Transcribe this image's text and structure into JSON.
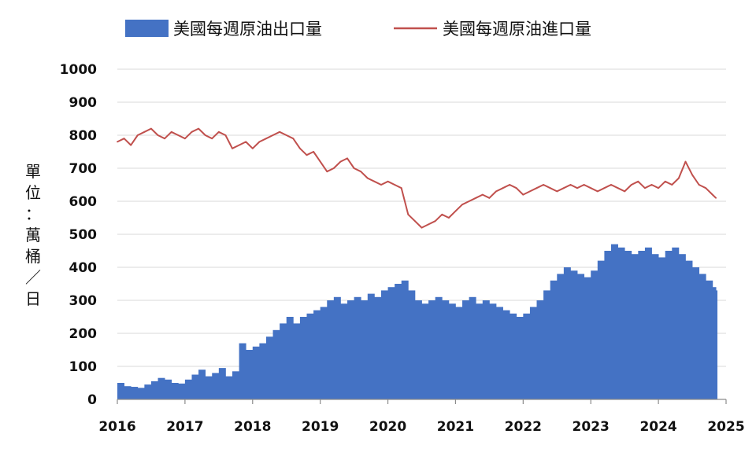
{
  "chart_data": {
    "type": "line",
    "title": "",
    "xlabel": "",
    "ylabel": "單位：萬桶／日",
    "ylabel_chars": [
      "單",
      "位",
      "：",
      "萬",
      "桶",
      "／",
      "日"
    ],
    "xlim": [
      2016,
      2025
    ],
    "ylim": [
      0,
      1000
    ],
    "xticks": [
      "2016",
      "2017",
      "2018",
      "2019",
      "2020",
      "2021",
      "2022",
      "2023",
      "2024",
      "2025"
    ],
    "yticks": [
      "0",
      "100",
      "200",
      "300",
      "400",
      "500",
      "600",
      "700",
      "800",
      "900",
      "1000"
    ],
    "grid": "horizontal",
    "legend_position": "top",
    "series": [
      {
        "name": "美國每週原油出口量",
        "type": "area",
        "color": "#4472c4",
        "x": [
          2016.0,
          2016.1,
          2016.2,
          2016.3,
          2016.4,
          2016.5,
          2016.6,
          2016.7,
          2016.8,
          2016.9,
          2017.0,
          2017.1,
          2017.2,
          2017.3,
          2017.4,
          2017.5,
          2017.6,
          2017.7,
          2017.8,
          2017.9,
          2018.0,
          2018.1,
          2018.2,
          2018.3,
          2018.4,
          2018.5,
          2018.6,
          2018.7,
          2018.8,
          2018.9,
          2019.0,
          2019.1,
          2019.2,
          2019.3,
          2019.4,
          2019.5,
          2019.6,
          2019.7,
          2019.8,
          2019.9,
          2020.0,
          2020.1,
          2020.2,
          2020.3,
          2020.4,
          2020.5,
          2020.6,
          2020.7,
          2020.8,
          2020.9,
          2021.0,
          2021.1,
          2021.2,
          2021.3,
          2021.4,
          2021.5,
          2021.6,
          2021.7,
          2021.8,
          2021.9,
          2022.0,
          2022.1,
          2022.2,
          2022.3,
          2022.4,
          2022.5,
          2022.6,
          2022.7,
          2022.8,
          2022.9,
          2023.0,
          2023.1,
          2023.2,
          2023.3,
          2023.4,
          2023.5,
          2023.6,
          2023.7,
          2023.8,
          2023.9,
          2024.0,
          2024.1,
          2024.2,
          2024.3,
          2024.4,
          2024.5,
          2024.6,
          2024.7,
          2024.8,
          2024.85
        ],
        "values": [
          50,
          40,
          38,
          35,
          45,
          55,
          65,
          60,
          50,
          48,
          60,
          75,
          90,
          70,
          80,
          95,
          70,
          85,
          170,
          150,
          160,
          170,
          190,
          210,
          230,
          250,
          230,
          250,
          260,
          270,
          280,
          300,
          310,
          290,
          300,
          310,
          300,
          320,
          310,
          330,
          340,
          350,
          360,
          330,
          300,
          290,
          300,
          310,
          300,
          290,
          280,
          300,
          310,
          290,
          300,
          290,
          280,
          270,
          260,
          250,
          260,
          280,
          300,
          330,
          360,
          380,
          400,
          390,
          380,
          370,
          390,
          420,
          450,
          470,
          460,
          450,
          440,
          450,
          460,
          440,
          430,
          450,
          460,
          440,
          420,
          400,
          380,
          360,
          340,
          330
        ]
      },
      {
        "name": "美國每週原油進口量",
        "type": "line",
        "color": "#c0504d",
        "x": [
          2016.0,
          2016.1,
          2016.2,
          2016.3,
          2016.4,
          2016.5,
          2016.6,
          2016.7,
          2016.8,
          2016.9,
          2017.0,
          2017.1,
          2017.2,
          2017.3,
          2017.4,
          2017.5,
          2017.6,
          2017.7,
          2017.8,
          2017.9,
          2018.0,
          2018.1,
          2018.2,
          2018.3,
          2018.4,
          2018.5,
          2018.6,
          2018.7,
          2018.8,
          2018.9,
          2019.0,
          2019.1,
          2019.2,
          2019.3,
          2019.4,
          2019.5,
          2019.6,
          2019.7,
          2019.8,
          2019.9,
          2020.0,
          2020.1,
          2020.2,
          2020.3,
          2020.4,
          2020.5,
          2020.6,
          2020.7,
          2020.8,
          2020.9,
          2021.0,
          2021.1,
          2021.2,
          2021.3,
          2021.4,
          2021.5,
          2021.6,
          2021.7,
          2021.8,
          2021.9,
          2022.0,
          2022.1,
          2022.2,
          2022.3,
          2022.4,
          2022.5,
          2022.6,
          2022.7,
          2022.8,
          2022.9,
          2023.0,
          2023.1,
          2023.2,
          2023.3,
          2023.4,
          2023.5,
          2023.6,
          2023.7,
          2023.8,
          2023.9,
          2024.0,
          2024.1,
          2024.2,
          2024.3,
          2024.4,
          2024.5,
          2024.6,
          2024.7,
          2024.8,
          2024.85
        ],
        "values": [
          780,
          790,
          770,
          800,
          810,
          820,
          800,
          790,
          810,
          800,
          790,
          810,
          820,
          800,
          790,
          810,
          800,
          760,
          770,
          780,
          760,
          780,
          790,
          800,
          810,
          800,
          790,
          760,
          740,
          750,
          720,
          690,
          700,
          720,
          730,
          700,
          690,
          670,
          660,
          650,
          660,
          650,
          640,
          560,
          540,
          520,
          530,
          540,
          560,
          550,
          570,
          590,
          600,
          610,
          620,
          610,
          630,
          640,
          650,
          640,
          620,
          630,
          640,
          650,
          640,
          630,
          640,
          650,
          640,
          650,
          640,
          630,
          640,
          650,
          640,
          630,
          650,
          660,
          640,
          650,
          640,
          660,
          650,
          670,
          720,
          680,
          650,
          640,
          620,
          610
        ]
      }
    ]
  }
}
